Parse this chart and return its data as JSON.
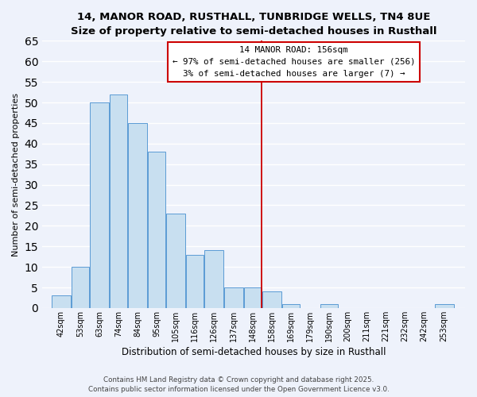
{
  "title_line1": "14, MANOR ROAD, RUSTHALL, TUNBRIDGE WELLS, TN4 8UE",
  "title_line2": "Size of property relative to semi-detached houses in Rusthall",
  "xlabel": "Distribution of semi-detached houses by size in Rusthall",
  "ylabel": "Number of semi-detached properties",
  "bar_labels": [
    "42sqm",
    "53sqm",
    "63sqm",
    "74sqm",
    "84sqm",
    "95sqm",
    "105sqm",
    "116sqm",
    "126sqm",
    "137sqm",
    "148sqm",
    "158sqm",
    "169sqm",
    "179sqm",
    "190sqm",
    "200sqm",
    "211sqm",
    "221sqm",
    "232sqm",
    "242sqm",
    "253sqm"
  ],
  "bar_values": [
    3,
    10,
    50,
    52,
    45,
    38,
    23,
    13,
    14,
    5,
    5,
    4,
    1,
    0,
    1,
    0,
    0,
    0,
    0,
    0,
    1
  ],
  "bar_color": "#c8dff0",
  "bar_edge_color": "#5b9bd5",
  "background_color": "#eef2fb",
  "grid_color": "#ffffff",
  "annotation_label": "14 MANOR ROAD: 156sqm",
  "annotation_smaller": "← 97% of semi-detached houses are smaller (256)",
  "annotation_larger": "3% of semi-detached houses are larger (7) →",
  "ylim": [
    0,
    65
  ],
  "yticks": [
    0,
    5,
    10,
    15,
    20,
    25,
    30,
    35,
    40,
    45,
    50,
    55,
    60,
    65
  ],
  "bin_edges": [
    42,
    53,
    63,
    74,
    84,
    95,
    105,
    116,
    126,
    137,
    148,
    158,
    169,
    179,
    190,
    200,
    211,
    221,
    232,
    242,
    253,
    264
  ],
  "red_line_x": 158,
  "footer_line1": "Contains HM Land Registry data © Crown copyright and database right 2025.",
  "footer_line2": "Contains public sector information licensed under the Open Government Licence v3.0."
}
